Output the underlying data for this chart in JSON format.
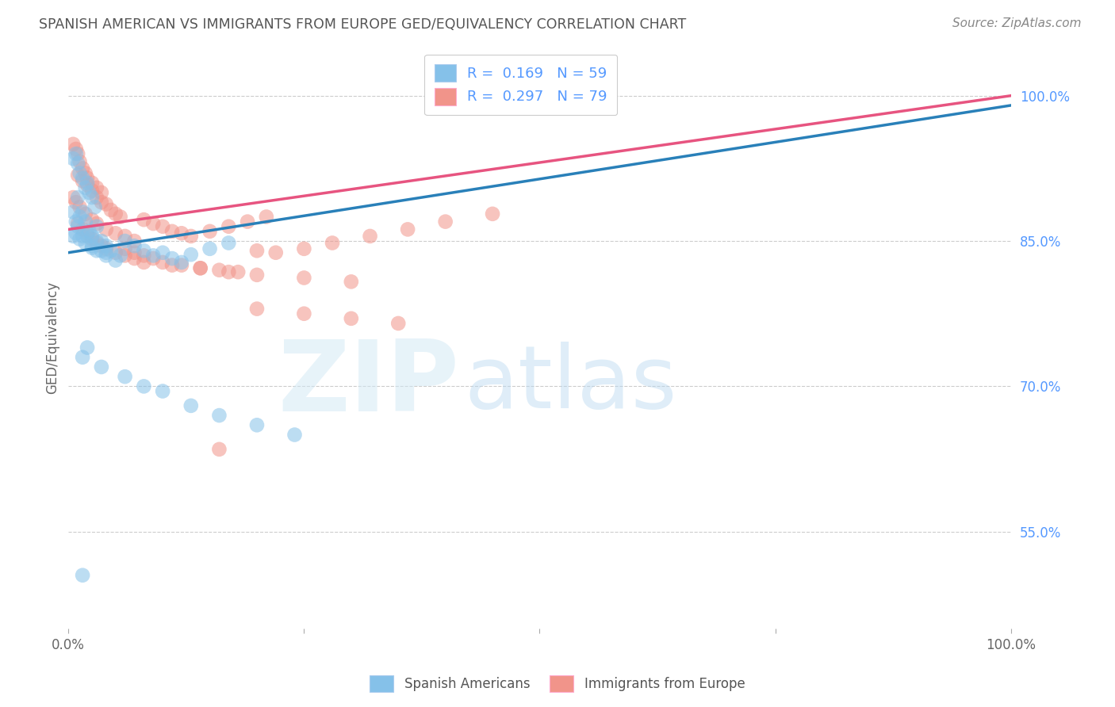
{
  "title": "SPANISH AMERICAN VS IMMIGRANTS FROM EUROPE GED/EQUIVALENCY CORRELATION CHART",
  "source": "Source: ZipAtlas.com",
  "ylabel": "GED/Equivalency",
  "xlim": [
    0.0,
    1.0
  ],
  "ylim": [
    0.45,
    1.05
  ],
  "y_tick_values_right": [
    0.55,
    0.7,
    0.85,
    1.0
  ],
  "blue_color": "#85c1e9",
  "pink_color": "#f1948a",
  "blue_line_color": "#2980b9",
  "pink_line_color": "#e75480",
  "legend_blue_label": "R =  0.169   N = 59",
  "legend_pink_label": "R =  0.297   N = 79",
  "blue_line_x0": 0.0,
  "blue_line_y0": 0.838,
  "blue_line_x1": 1.0,
  "blue_line_y1": 0.99,
  "pink_line_x0": 0.0,
  "pink_line_y0": 0.862,
  "pink_line_x1": 1.0,
  "pink_line_y1": 1.0,
  "blue_x": [
    0.005,
    0.008,
    0.01,
    0.012,
    0.015,
    0.018,
    0.02,
    0.022,
    0.025,
    0.028,
    0.01,
    0.012,
    0.015,
    0.018,
    0.022,
    0.025,
    0.03,
    0.035,
    0.04,
    0.045,
    0.005,
    0.008,
    0.01,
    0.015,
    0.02,
    0.025,
    0.03,
    0.035,
    0.04,
    0.05,
    0.06,
    0.07,
    0.08,
    0.09,
    0.1,
    0.11,
    0.12,
    0.13,
    0.15,
    0.17,
    0.005,
    0.008,
    0.012,
    0.018,
    0.025,
    0.03,
    0.04,
    0.055,
    0.02,
    0.015,
    0.035,
    0.06,
    0.08,
    0.1,
    0.13,
    0.16,
    0.2,
    0.24,
    0.015
  ],
  "blue_y": [
    0.935,
    0.94,
    0.93,
    0.92,
    0.915,
    0.905,
    0.91,
    0.9,
    0.895,
    0.885,
    0.895,
    0.875,
    0.88,
    0.87,
    0.86,
    0.855,
    0.865,
    0.85,
    0.845,
    0.84,
    0.88,
    0.87,
    0.865,
    0.855,
    0.855,
    0.845,
    0.85,
    0.84,
    0.835,
    0.83,
    0.85,
    0.845,
    0.84,
    0.835,
    0.838,
    0.832,
    0.828,
    0.836,
    0.842,
    0.848,
    0.855,
    0.858,
    0.852,
    0.848,
    0.843,
    0.84,
    0.838,
    0.835,
    0.74,
    0.73,
    0.72,
    0.71,
    0.7,
    0.695,
    0.68,
    0.67,
    0.66,
    0.65,
    0.505
  ],
  "pink_x": [
    0.005,
    0.008,
    0.01,
    0.012,
    0.015,
    0.018,
    0.02,
    0.025,
    0.03,
    0.035,
    0.01,
    0.015,
    0.02,
    0.025,
    0.03,
    0.035,
    0.04,
    0.045,
    0.05,
    0.055,
    0.005,
    0.008,
    0.012,
    0.018,
    0.025,
    0.03,
    0.04,
    0.05,
    0.06,
    0.07,
    0.08,
    0.09,
    0.1,
    0.11,
    0.12,
    0.13,
    0.15,
    0.17,
    0.19,
    0.21,
    0.06,
    0.07,
    0.08,
    0.09,
    0.1,
    0.12,
    0.14,
    0.16,
    0.18,
    0.2,
    0.22,
    0.25,
    0.28,
    0.32,
    0.36,
    0.4,
    0.45,
    0.01,
    0.015,
    0.02,
    0.025,
    0.03,
    0.035,
    0.04,
    0.05,
    0.06,
    0.07,
    0.08,
    0.11,
    0.14,
    0.17,
    0.2,
    0.25,
    0.3,
    0.2,
    0.25,
    0.3,
    0.35,
    0.16
  ],
  "pink_y": [
    0.95,
    0.945,
    0.94,
    0.932,
    0.925,
    0.92,
    0.915,
    0.91,
    0.905,
    0.9,
    0.918,
    0.912,
    0.908,
    0.902,
    0.895,
    0.89,
    0.888,
    0.882,
    0.878,
    0.875,
    0.895,
    0.89,
    0.885,
    0.878,
    0.872,
    0.868,
    0.862,
    0.858,
    0.855,
    0.85,
    0.872,
    0.868,
    0.865,
    0.86,
    0.858,
    0.855,
    0.86,
    0.865,
    0.87,
    0.875,
    0.842,
    0.838,
    0.835,
    0.832,
    0.828,
    0.825,
    0.822,
    0.82,
    0.818,
    0.84,
    0.838,
    0.842,
    0.848,
    0.855,
    0.862,
    0.87,
    0.878,
    0.868,
    0.862,
    0.858,
    0.852,
    0.848,
    0.845,
    0.842,
    0.838,
    0.835,
    0.832,
    0.828,
    0.825,
    0.822,
    0.818,
    0.815,
    0.812,
    0.808,
    0.78,
    0.775,
    0.77,
    0.765,
    0.635
  ],
  "background_color": "#ffffff",
  "grid_color": "#cccccc",
  "title_color": "#555555",
  "source_color": "#888888",
  "axis_label_color": "#666666",
  "right_tick_color": "#5599ff"
}
